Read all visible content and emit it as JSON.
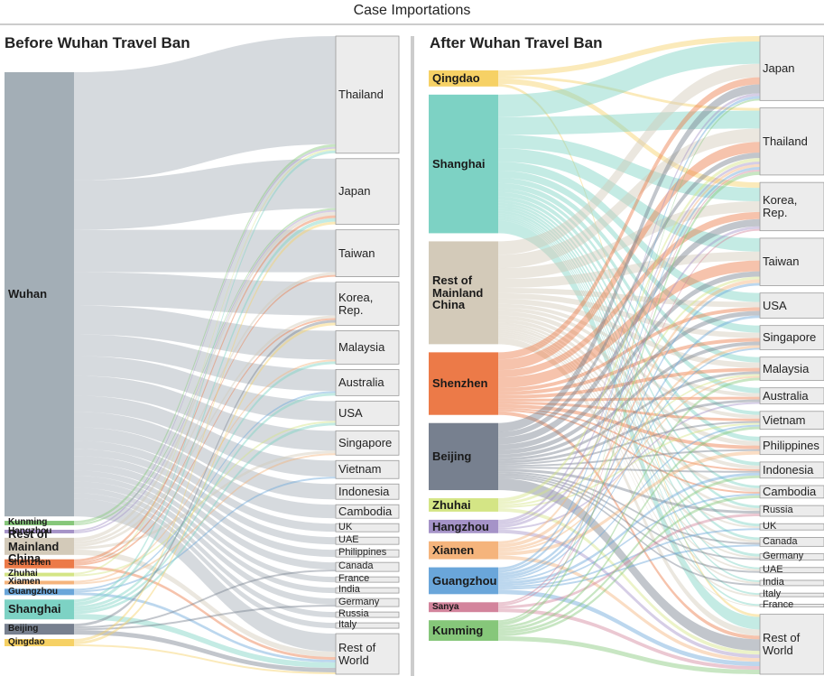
{
  "title": "Case Importations",
  "chart_data": [
    {
      "type": "sankey",
      "title": "Before Wuhan Travel Ban",
      "sources": [
        {
          "name": "Wuhan",
          "color": "#a3aeb6"
        },
        {
          "name": "Kunming",
          "color": "#86c77a"
        },
        {
          "name": "Hangzhou",
          "color": "#a593c8"
        },
        {
          "name": "Rest of Mainland China",
          "color": "#d3cab9"
        },
        {
          "name": "Shenzhen",
          "color": "#ec7a48"
        },
        {
          "name": "Zhuhai",
          "color": "#d4e585"
        },
        {
          "name": "Xiamen",
          "color": "#f5b47c"
        },
        {
          "name": "Guangzhou",
          "color": "#6aa6da"
        },
        {
          "name": "Shanghai",
          "color": "#7dd2c4"
        },
        {
          "name": "Beijing",
          "color": "#77808f"
        },
        {
          "name": "Qingdao",
          "color": "#f6d165"
        }
      ],
      "targets": [
        "Thailand",
        "Japan",
        "Taiwan",
        "Korea, Rep.",
        "Malaysia",
        "Australia",
        "USA",
        "Singapore",
        "Vietnam",
        "Indonesia",
        "Cambodia",
        "UK",
        "UAE",
        "Philippines",
        "Canada",
        "France",
        "India",
        "Germany",
        "Russia",
        "Italy",
        "Rest of World"
      ],
      "links": [
        [
          0,
          0,
          120
        ],
        [
          0,
          1,
          55
        ],
        [
          0,
          2,
          47
        ],
        [
          0,
          3,
          37
        ],
        [
          0,
          4,
          32
        ],
        [
          0,
          5,
          24
        ],
        [
          0,
          6,
          22
        ],
        [
          0,
          7,
          22
        ],
        [
          0,
          8,
          18
        ],
        [
          0,
          9,
          17
        ],
        [
          0,
          10,
          15
        ],
        [
          0,
          11,
          9
        ],
        [
          0,
          12,
          8
        ],
        [
          0,
          13,
          8
        ],
        [
          0,
          14,
          8
        ],
        [
          0,
          15,
          6
        ],
        [
          0,
          16,
          6
        ],
        [
          0,
          17,
          7
        ],
        [
          0,
          18,
          6
        ],
        [
          0,
          19,
          6
        ],
        [
          0,
          20,
          20
        ],
        [
          1,
          0,
          3
        ],
        [
          1,
          1,
          2
        ],
        [
          2,
          0,
          2
        ],
        [
          2,
          1,
          2
        ],
        [
          3,
          1,
          4
        ],
        [
          3,
          2,
          3
        ],
        [
          3,
          3,
          3
        ],
        [
          3,
          7,
          3
        ],
        [
          3,
          20,
          6
        ],
        [
          4,
          1,
          3
        ],
        [
          4,
          2,
          2
        ],
        [
          4,
          3,
          2
        ],
        [
          4,
          20,
          3
        ],
        [
          5,
          0,
          2
        ],
        [
          5,
          6,
          2
        ],
        [
          6,
          4,
          2
        ],
        [
          6,
          7,
          2
        ],
        [
          7,
          5,
          2
        ],
        [
          7,
          8,
          2
        ],
        [
          7,
          20,
          3
        ],
        [
          8,
          0,
          3
        ],
        [
          8,
          1,
          4
        ],
        [
          8,
          4,
          3
        ],
        [
          8,
          5,
          3
        ],
        [
          8,
          6,
          3
        ],
        [
          8,
          20,
          6
        ],
        [
          9,
          3,
          3
        ],
        [
          9,
          14,
          2
        ],
        [
          9,
          17,
          2
        ],
        [
          9,
          20,
          5
        ],
        [
          10,
          1,
          3
        ],
        [
          10,
          3,
          3
        ],
        [
          10,
          20,
          2
        ]
      ]
    },
    {
      "type": "sankey",
      "title": "After Wuhan Travel Ban",
      "sources": [
        {
          "name": "Qingdao",
          "color": "#f6d165"
        },
        {
          "name": "Shanghai",
          "color": "#7dd2c4"
        },
        {
          "name": "Rest of Mainland China",
          "color": "#d3cab9"
        },
        {
          "name": "Shenzhen",
          "color": "#ec7a48"
        },
        {
          "name": "Beijing",
          "color": "#77808f"
        },
        {
          "name": "Zhuhai",
          "color": "#d4e585"
        },
        {
          "name": "Hangzhou",
          "color": "#a593c8"
        },
        {
          "name": "Xiamen",
          "color": "#f5b47c"
        },
        {
          "name": "Guangzhou",
          "color": "#6aa6da"
        },
        {
          "name": "Sanya",
          "color": "#d3849c"
        },
        {
          "name": "Kunming",
          "color": "#86c77a"
        }
      ],
      "targets": [
        "Japan",
        "Thailand",
        "Korea, Rep.",
        "Taiwan",
        "USA",
        "Singapore",
        "Malaysia",
        "Australia",
        "Vietnam",
        "Philippines",
        "Indonesia",
        "Cambodia",
        "Russia",
        "UK",
        "Canada",
        "Germany",
        "UAE",
        "India",
        "Italy",
        "France",
        "Rest of World"
      ],
      "links": [
        [
          0,
          0,
          6
        ],
        [
          0,
          2,
          6
        ],
        [
          0,
          1,
          3
        ],
        [
          0,
          20,
          3
        ],
        [
          1,
          0,
          25
        ],
        [
          1,
          1,
          20
        ],
        [
          1,
          2,
          15
        ],
        [
          1,
          3,
          15
        ],
        [
          1,
          4,
          10
        ],
        [
          1,
          5,
          8
        ],
        [
          1,
          6,
          6
        ],
        [
          1,
          7,
          6
        ],
        [
          1,
          8,
          4
        ],
        [
          1,
          9,
          5
        ],
        [
          1,
          10,
          4
        ],
        [
          1,
          11,
          3
        ],
        [
          1,
          12,
          3
        ],
        [
          1,
          13,
          3
        ],
        [
          1,
          14,
          3
        ],
        [
          1,
          15,
          3
        ],
        [
          1,
          16,
          2
        ],
        [
          1,
          17,
          2
        ],
        [
          1,
          18,
          2
        ],
        [
          1,
          19,
          2
        ],
        [
          1,
          20,
          14
        ],
        [
          2,
          0,
          15
        ],
        [
          2,
          1,
          15
        ],
        [
          2,
          2,
          12
        ],
        [
          2,
          3,
          10
        ],
        [
          2,
          4,
          6
        ],
        [
          2,
          5,
          6
        ],
        [
          2,
          6,
          6
        ],
        [
          2,
          7,
          4
        ],
        [
          2,
          8,
          4
        ],
        [
          2,
          9,
          5
        ],
        [
          2,
          10,
          4
        ],
        [
          2,
          11,
          4
        ],
        [
          2,
          12,
          3
        ],
        [
          2,
          13,
          2
        ],
        [
          2,
          14,
          3
        ],
        [
          2,
          15,
          2
        ],
        [
          2,
          16,
          2
        ],
        [
          2,
          17,
          2
        ],
        [
          2,
          18,
          2
        ],
        [
          2,
          19,
          1
        ],
        [
          2,
          20,
          7
        ],
        [
          3,
          0,
          8
        ],
        [
          3,
          1,
          12
        ],
        [
          3,
          2,
          8
        ],
        [
          3,
          3,
          12
        ],
        [
          3,
          4,
          4
        ],
        [
          3,
          5,
          4
        ],
        [
          3,
          6,
          4
        ],
        [
          3,
          7,
          3
        ],
        [
          3,
          8,
          3
        ],
        [
          3,
          9,
          4
        ],
        [
          3,
          10,
          2
        ],
        [
          3,
          11,
          2
        ],
        [
          3,
          20,
          4
        ],
        [
          4,
          0,
          10
        ],
        [
          4,
          1,
          6
        ],
        [
          4,
          2,
          8
        ],
        [
          4,
          3,
          6
        ],
        [
          4,
          4,
          5
        ],
        [
          4,
          5,
          4
        ],
        [
          4,
          6,
          3
        ],
        [
          4,
          7,
          3
        ],
        [
          4,
          8,
          2
        ],
        [
          4,
          9,
          2
        ],
        [
          4,
          10,
          2
        ],
        [
          4,
          12,
          3
        ],
        [
          4,
          14,
          2
        ],
        [
          4,
          15,
          2
        ],
        [
          4,
          16,
          2
        ],
        [
          4,
          17,
          2
        ],
        [
          4,
          20,
          13
        ],
        [
          5,
          1,
          4
        ],
        [
          5,
          3,
          3
        ],
        [
          5,
          6,
          2
        ],
        [
          5,
          8,
          2
        ],
        [
          5,
          20,
          4
        ],
        [
          6,
          0,
          3
        ],
        [
          6,
          1,
          3
        ],
        [
          6,
          2,
          3
        ],
        [
          6,
          7,
          2
        ],
        [
          6,
          20,
          4
        ],
        [
          7,
          1,
          3
        ],
        [
          7,
          3,
          4
        ],
        [
          7,
          5,
          3
        ],
        [
          7,
          9,
          4
        ],
        [
          7,
          6,
          2
        ],
        [
          7,
          20,
          4
        ],
        [
          8,
          0,
          3
        ],
        [
          8,
          1,
          3
        ],
        [
          8,
          3,
          3
        ],
        [
          8,
          4,
          3
        ],
        [
          8,
          5,
          2
        ],
        [
          8,
          8,
          2
        ],
        [
          8,
          10,
          3
        ],
        [
          8,
          11,
          2
        ],
        [
          8,
          13,
          2
        ],
        [
          8,
          14,
          2
        ],
        [
          8,
          20,
          5
        ],
        [
          9,
          1,
          2
        ],
        [
          9,
          2,
          2
        ],
        [
          9,
          12,
          3
        ],
        [
          9,
          20,
          4
        ],
        [
          10,
          1,
          4
        ],
        [
          10,
          0,
          2
        ],
        [
          10,
          6,
          3
        ],
        [
          10,
          8,
          3
        ],
        [
          10,
          10,
          3
        ],
        [
          10,
          11,
          3
        ],
        [
          10,
          20,
          5
        ]
      ]
    }
  ]
}
